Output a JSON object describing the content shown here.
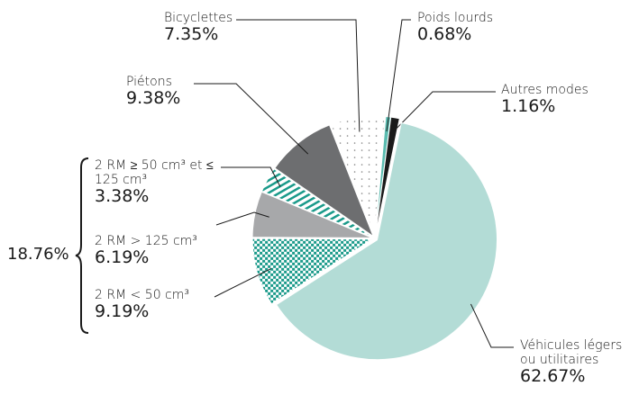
{
  "chart_data": {
    "type": "pie",
    "categories": [
      "Poids lourds",
      "Autres modes",
      "Véhicules légers ou utilitaires",
      "2 RM < 50 cm³",
      "2 RM > 125 cm³",
      "2 RM ≥ 50 cm³ et ≤ 125 cm³",
      "Piétons",
      "Bicyclettes"
    ],
    "values": [
      0.68,
      1.16,
      62.67,
      9.19,
      6.19,
      3.38,
      9.38,
      7.35
    ],
    "value_labels": [
      "0.68%",
      "1.16%",
      "62.67%",
      "9.19%",
      "6.19%",
      "3.38%",
      "9.38%",
      "7.35%"
    ],
    "colors": [
      "#5bbcb0",
      "#1a1a1a",
      "#b3dcd6",
      "#1a9a8a",
      "#a7a8aa",
      "#1a9a8a",
      "#6d6e70",
      "#7a7a7a"
    ],
    "fills": [
      "solid",
      "solid",
      "solid",
      "checker",
      "solid",
      "stripes",
      "solid",
      "dots"
    ],
    "annotations": [
      {
        "text": "18.76%"
      }
    ]
  }
}
